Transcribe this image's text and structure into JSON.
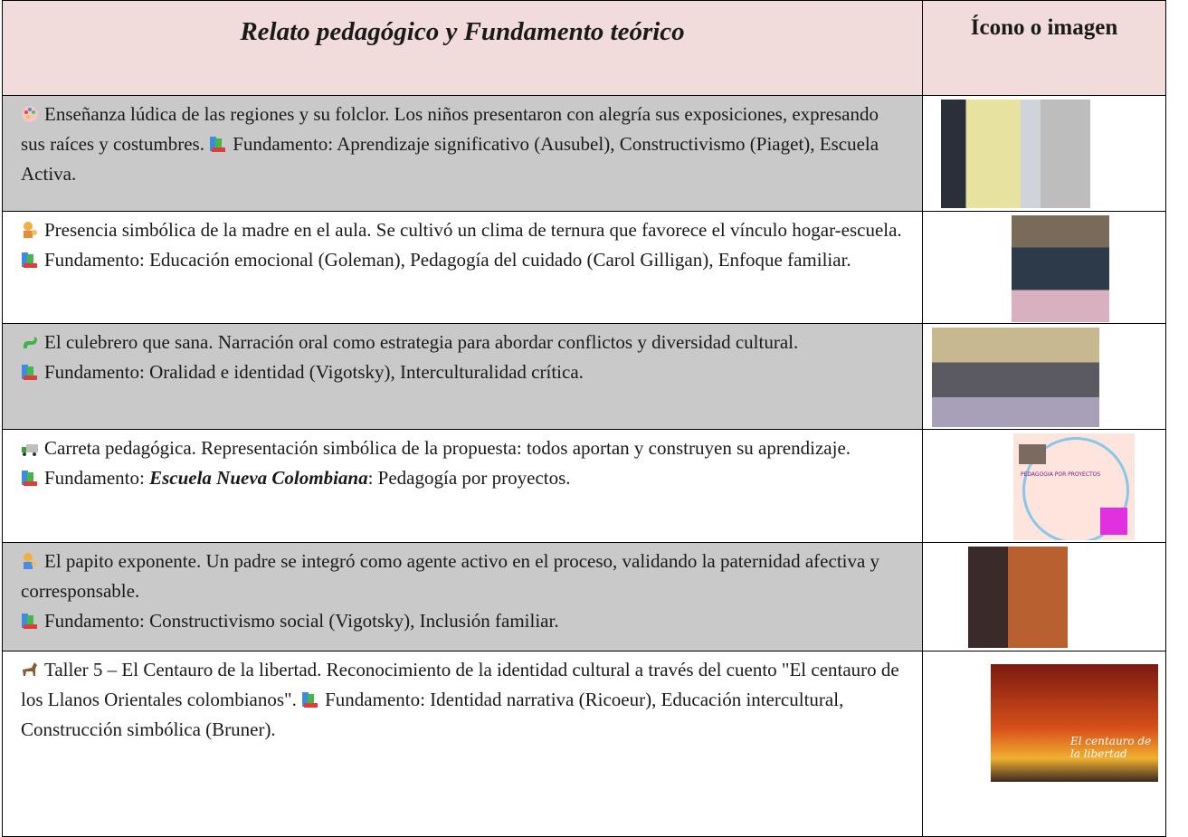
{
  "header": {
    "title": "Relato pedagógico y Fundamento teórico",
    "column": "Ícono o imagen"
  },
  "rows": [
    {
      "story": "Enseñanza lúdica de las regiones y su folclor. Los niños presentaron con alegría sus exposiciones, expresando sus raíces y costumbres.",
      "foundation": "Fundamento: Aprendizaje significativo (Ausubel), Constructivismo (Piaget), Escuela Activa."
    },
    {
      "story": "Presencia simbólica de la madre en el aula. Se cultivó un clima de ternura que favorece el vínculo hogar-escuela.",
      "foundation": "Fundamento: Educación emocional (Goleman), Pedagogía del cuidado (Carol Gilligan), Enfoque familiar."
    },
    {
      "story": "El culebrero que sana. Narración oral como estrategia para abordar conflictos y diversidad cultural.",
      "foundation": "Fundamento: Oralidad e identidad (Vigotsky), Interculturalidad crítica."
    },
    {
      "story": "Carreta pedagógica. Representación simbólica de la propuesta: todos aportan y construyen su aprendizaje.",
      "foundation": {
        "prefix": "Fundamento:",
        "emphasis": "Escuela Nueva Colombiana",
        "rest": ": Pedagogía por proyectos."
      },
      "image_text": "PEDAGOGIA POR PROYECTOS"
    },
    {
      "story": "El papito exponente. Un padre se integró como agente activo en el proceso, validando la paternidad afectiva y corresponsable.",
      "foundation": "Fundamento: Constructivismo social (Vigotsky), Inclusión familiar."
    },
    {
      "story": "Taller 5 – El Centauro de la libertad. Reconocimiento de la identidad cultural a través del cuento \"El centauro de los Llanos Orientales colombianos\".",
      "foundation": "Fundamento: Identidad narrativa (Ricoeur), Educación intercultural, Construcción simbólica (Bruner).",
      "image_text": "El centauro de la libertad"
    }
  ]
}
